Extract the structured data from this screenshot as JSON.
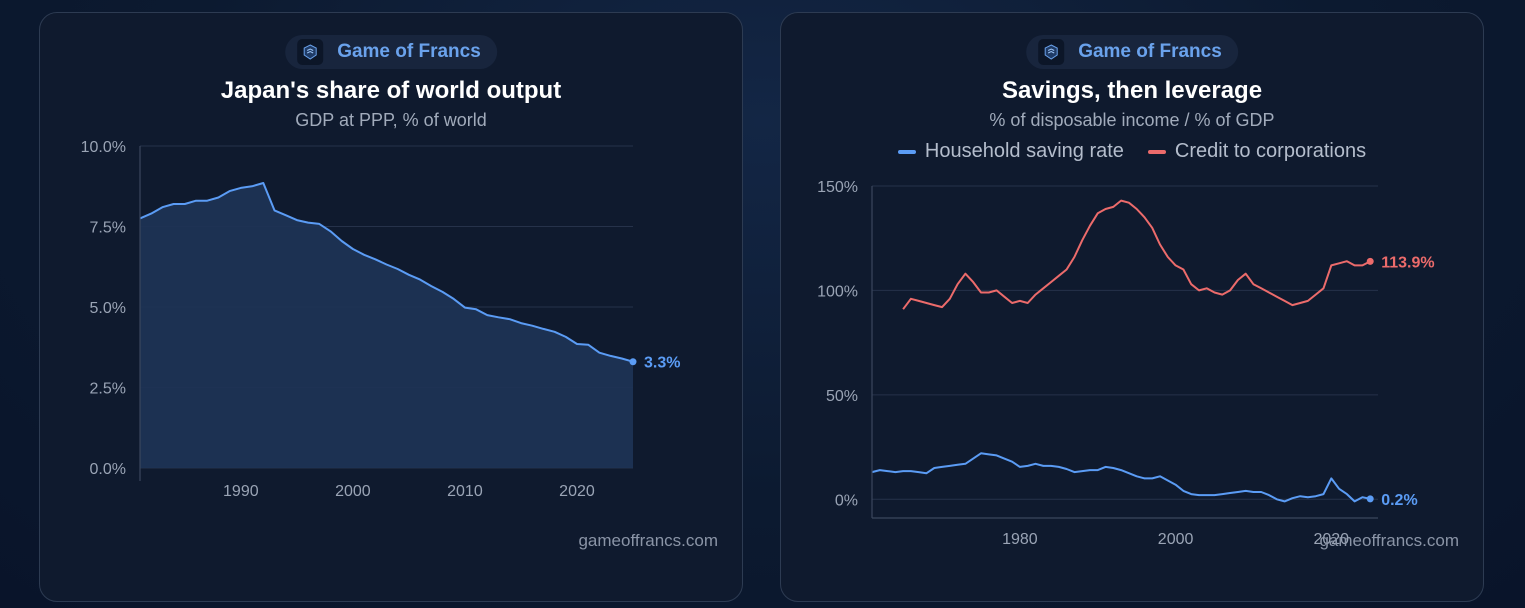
{
  "background_color": "#0b1629",
  "charts": [
    {
      "brand": "Game of Francs",
      "watermark": "gameoffrancs.com",
      "chart_data": {
        "type": "area",
        "title": "Japan's share of world output",
        "subtitle": "GDP at PPP, % of world",
        "xlabel": "",
        "ylabel": "",
        "xlim": [
          1981,
          2025
        ],
        "ylim": [
          0,
          10
        ],
        "yticks": [
          0,
          2.5,
          5,
          7.5,
          10
        ],
        "ytick_labels": [
          "0.0%",
          "2.5%",
          "5.0%",
          "7.5%",
          "10.0%"
        ],
        "xticks": [
          1990,
          2000,
          2010,
          2020
        ],
        "xtick_labels": [
          "1990",
          "2000",
          "2010",
          "2020"
        ],
        "grid": "horizontal",
        "legend": "none",
        "series": [
          {
            "color": "#5b9cf5",
            "end_label": "3.3%",
            "x": [
              1981,
              1982,
              1983,
              1984,
              1985,
              1986,
              1987,
              1988,
              1989,
              1990,
              1991,
              1992,
              1993,
              1994,
              1995,
              1996,
              1997,
              1998,
              1999,
              2000,
              2001,
              2002,
              2003,
              2004,
              2005,
              2006,
              2007,
              2008,
              2009,
              2010,
              2011,
              2012,
              2013,
              2014,
              2015,
              2016,
              2017,
              2018,
              2019,
              2020,
              2021,
              2022,
              2023,
              2024,
              2025
            ],
            "y": [
              7.75,
              7.9,
              8.1,
              8.2,
              8.2,
              8.3,
              8.3,
              8.4,
              8.6,
              8.7,
              8.75,
              8.85,
              8.0,
              7.85,
              7.7,
              7.62,
              7.58,
              7.35,
              7.05,
              6.8,
              6.62,
              6.48,
              6.32,
              6.18,
              6.0,
              5.85,
              5.65,
              5.47,
              5.25,
              4.98,
              4.93,
              4.75,
              4.68,
              4.62,
              4.5,
              4.42,
              4.32,
              4.23,
              4.07,
              3.85,
              3.83,
              3.58,
              3.48,
              3.4,
              3.3
            ]
          }
        ]
      }
    },
    {
      "brand": "Game of Francs",
      "watermark": "gameoffrancs.com",
      "chart_data": {
        "type": "line",
        "title": "Savings, then leverage",
        "subtitle": "% of disposable income / % of GDP",
        "xlabel": "",
        "ylabel": "",
        "xlim": [
          1961,
          2026
        ],
        "ylim": [
          -8,
          150
        ],
        "yticks": [
          0,
          50,
          100,
          150
        ],
        "ytick_labels": [
          "0%",
          "50%",
          "100%",
          "150%"
        ],
        "xticks": [
          1980,
          2000,
          2020
        ],
        "xtick_labels": [
          "1980",
          "2000",
          "2020"
        ],
        "grid": "horizontal",
        "legend": "top-center",
        "series": [
          {
            "name": "Household saving rate",
            "color": "#5b9cf5",
            "end_label": "0.2%",
            "x": [
              1961,
              1962,
              1963,
              1964,
              1965,
              1966,
              1967,
              1968,
              1969,
              1970,
              1971,
              1972,
              1973,
              1974,
              1975,
              1976,
              1977,
              1978,
              1979,
              1980,
              1981,
              1982,
              1983,
              1984,
              1985,
              1986,
              1987,
              1988,
              1989,
              1990,
              1991,
              1992,
              1993,
              1994,
              1995,
              1996,
              1997,
              1998,
              1999,
              2000,
              2001,
              2002,
              2003,
              2004,
              2005,
              2006,
              2007,
              2008,
              2009,
              2010,
              2011,
              2012,
              2013,
              2014,
              2015,
              2016,
              2017,
              2018,
              2019,
              2020,
              2021,
              2022,
              2023,
              2024,
              2025
            ],
            "y": [
              13,
              14,
              13.5,
              13,
              13.5,
              13.5,
              13,
              12.5,
              15,
              15.5,
              16,
              16.5,
              17,
              19.5,
              22,
              21.5,
              21,
              19.5,
              18,
              15.5,
              16,
              17,
              16,
              16,
              15.5,
              14.5,
              13,
              13.5,
              14,
              14,
              15.5,
              15,
              14,
              12.5,
              11,
              10,
              10,
              11,
              9,
              7,
              4,
              2.5,
              2,
              2,
              2,
              2.5,
              3,
              3.5,
              4,
              3.5,
              3.5,
              2,
              0,
              -1,
              0.5,
              1.5,
              1,
              1.5,
              2.5,
              10,
              5,
              2.5,
              -1,
              1,
              0.2
            ]
          },
          {
            "name": "Credit to corporations",
            "color": "#ec6b6b",
            "end_label": "113.9%",
            "x": [
              1965,
              1966,
              1967,
              1968,
              1969,
              1970,
              1971,
              1972,
              1973,
              1974,
              1975,
              1976,
              1977,
              1978,
              1979,
              1980,
              1981,
              1982,
              1983,
              1984,
              1985,
              1986,
              1987,
              1988,
              1989,
              1990,
              1991,
              1992,
              1993,
              1994,
              1995,
              1996,
              1997,
              1998,
              1999,
              2000,
              2001,
              2002,
              2003,
              2004,
              2005,
              2006,
              2007,
              2008,
              2009,
              2010,
              2011,
              2012,
              2013,
              2014,
              2015,
              2016,
              2017,
              2018,
              2019,
              2020,
              2021,
              2022,
              2023,
              2024,
              2025
            ],
            "y": [
              91,
              96,
              95,
              94,
              93,
              92,
              96,
              103,
              108,
              104,
              99,
              99,
              100,
              97,
              94,
              95,
              94,
              98,
              101,
              104,
              107,
              110,
              116,
              124,
              131,
              137,
              139,
              140,
              143,
              142,
              139,
              135,
              130,
              122,
              116,
              112,
              110,
              103,
              100,
              101,
              99,
              98,
              100,
              105,
              108,
              103,
              101,
              99,
              97,
              95,
              93,
              94,
              95,
              98,
              101,
              112,
              113,
              114,
              112,
              112,
              113.9
            ]
          }
        ]
      }
    }
  ]
}
